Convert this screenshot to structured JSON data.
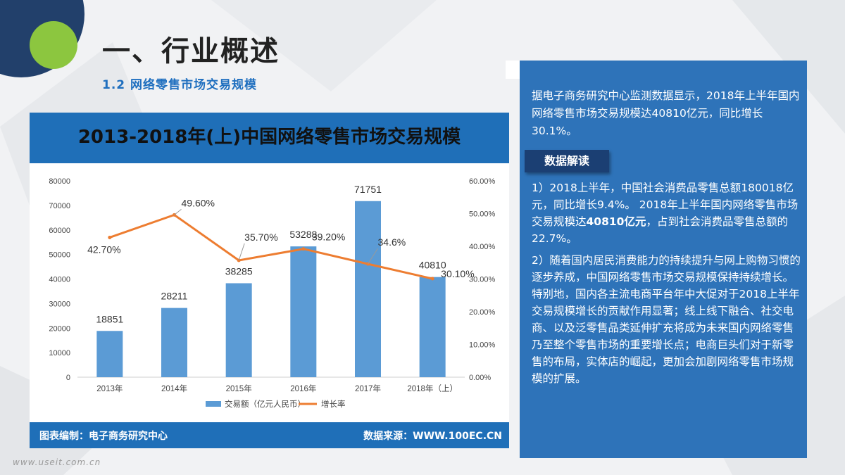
{
  "header": {
    "title": "一、行业概述",
    "subtitle": "1.2 网络零售市场交易规模"
  },
  "chart_panel": {
    "title": "2013-2018年(上)中国网络零售市场交易规模",
    "footer_left": "图表编制：电子商务研究中心",
    "footer_right": "数据来源：WWW.100EC.CN"
  },
  "chart_data": {
    "type": "bar",
    "title": "2013-2018年(上)中国网络零售市场交易规模",
    "categories": [
      "2013年",
      "2014年",
      "2015年",
      "2016年",
      "2017年",
      "2018年（上）"
    ],
    "series": [
      {
        "name": "交易额（亿元人民币）",
        "type": "bar",
        "axis": "left",
        "color": "#5b9bd5",
        "values": [
          18851,
          28211,
          38285,
          53288,
          71751,
          40810
        ],
        "labels": [
          "18851",
          "28211",
          "38285",
          "53288",
          "71751",
          "40810"
        ]
      },
      {
        "name": "增长率",
        "type": "line",
        "axis": "right",
        "color": "#ed7d31",
        "values": [
          42.7,
          49.6,
          35.7,
          39.2,
          34.6,
          30.1
        ],
        "labels": [
          "42.70%",
          "49.60%",
          "35.70%",
          "39.20%",
          "34.6%",
          "30.10%"
        ]
      }
    ],
    "y_left": {
      "min": 0,
      "max": 80000,
      "step": 10000,
      "ticks": [
        "0",
        "10000",
        "20000",
        "30000",
        "40000",
        "50000",
        "60000",
        "70000",
        "80000"
      ]
    },
    "y_right": {
      "min": 0,
      "max": 60,
      "step": 10,
      "ticks": [
        "0.00%",
        "10.00%",
        "20.00%",
        "30.00%",
        "40.00%",
        "50.00%",
        "60.00%"
      ]
    },
    "grid": false,
    "legend_position": "bottom"
  },
  "info": {
    "intro": "据电子商务研究中心监测数据显示，2018年上半年国内网络零售市场交易规模达40810亿元，同比增长30.1%。",
    "badge": "数据解读",
    "p1_a": "1）2018上半年，中国社会消费品零售总额180018亿元，同比增长9.4%。 2018年上半年国内网络零售市场交易规模达",
    "p1_bold": "40810亿元",
    "p1_b": "，占到社会消费品零售总额的22.7%。",
    "p2": "2）随着国内居民消费能力的持续提升与网上购物习惯的逐步养成，中国网络零售市场交易规模保持持续增长。特别地，国内各主流电商平台年中大促对于2018上半年交易规模增长的贡献作用显著；线上线下融合、社交电商、以及泛零售品类延伸扩充将成为未来国内网络零售乃至整个零售市场的重要增长点；电商巨头们对于新零售的布局，实体店的崛起，更加会加剧网络零售市场规模的扩展。"
  },
  "watermark": "www.useit.com.cn",
  "colors": {
    "bar": "#5b9bd5",
    "line": "#ed7d31",
    "banner": "#1f6fb8",
    "panel": "#2e73b9",
    "badge": "#1b3f73"
  }
}
